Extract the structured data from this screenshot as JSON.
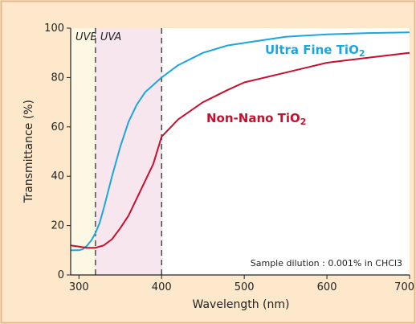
{
  "chart_data": {
    "type": "line",
    "xlabel": "Wavelength (nm)",
    "ylabel": "Transmittance (%)",
    "xlim": [
      290,
      700
    ],
    "ylim": [
      0,
      100
    ],
    "x_ticks": [
      300,
      400,
      500,
      600,
      700
    ],
    "y_ticks": [
      0,
      20,
      40,
      60,
      80,
      100
    ],
    "grid": false,
    "bands": [
      {
        "label": "UVB",
        "x_range": [
          290,
          320
        ],
        "color": "#fdf8e4"
      },
      {
        "label": "UVA",
        "x_range": [
          320,
          400
        ],
        "color": "#f7e6ee"
      }
    ],
    "annotation": "Sample dilution : 0.001% in CHCl3",
    "series": [
      {
        "name": "Ultra Fine TiO2",
        "label_main": "Ultra Fine TiO",
        "label_sub": "2",
        "color": "#1ba6de",
        "x": [
          290,
          300,
          305,
          310,
          315,
          320,
          325,
          330,
          340,
          350,
          360,
          370,
          380,
          390,
          400,
          420,
          450,
          480,
          500,
          550,
          600,
          650,
          700
        ],
        "y": [
          10,
          10,
          10.5,
          12,
          14,
          17,
          21,
          27,
          40,
          52,
          62,
          69,
          74,
          77,
          80,
          85,
          90,
          93,
          94,
          96.5,
          97.5,
          98,
          98.3
        ]
      },
      {
        "name": "Non-Nano TiO2",
        "label_main": "Non-Nano TiO",
        "label_sub": "2",
        "color": "#c8102e",
        "x": [
          290,
          300,
          310,
          320,
          330,
          340,
          350,
          360,
          370,
          380,
          390,
          400,
          420,
          450,
          480,
          500,
          550,
          600,
          650,
          700
        ],
        "y": [
          12,
          11.5,
          11,
          11,
          12,
          14.5,
          19,
          24,
          31,
          38,
          45,
          56,
          63,
          70,
          75,
          78,
          82,
          86,
          88,
          90
        ]
      }
    ]
  }
}
